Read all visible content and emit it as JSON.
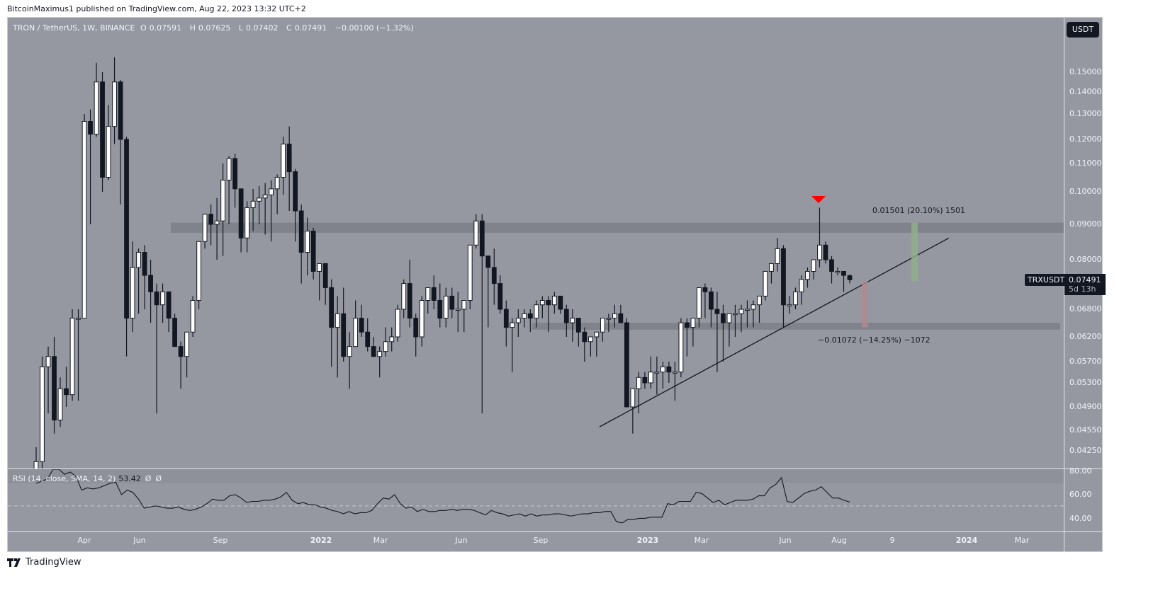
{
  "publisher": "BitcoinMaximus1 published on TradingView.com, Aug 22, 2023 13:32 UTC+2",
  "legend": {
    "symbol": "TRON / TetherUS, 1W, BINANCE",
    "open_label": "O",
    "open": "0.07591",
    "high_label": "H",
    "high": "0.07625",
    "low_label": "L",
    "low": "0.07402",
    "close_label": "C",
    "close": "0.07491",
    "change": "−0.00100 (−1.32%)"
  },
  "currency_button": "USDT",
  "price_axis": [
    "0.15000",
    "0.14000",
    "0.13000",
    "0.12000",
    "0.11000",
    "0.10000",
    "0.09000",
    "0.08000",
    "0.06800",
    "0.06200",
    "0.05700",
    "0.05300",
    "0.04900",
    "0.04550",
    "0.04250"
  ],
  "current_price": {
    "symbol": "TRXUSDT",
    "price": "0.07491",
    "countdown": "5d 13h"
  },
  "rsi": {
    "label": "RSI (14, close, SMA, 14, 2)",
    "value": "53.42",
    "na1": "Ø",
    "na2": "Ø",
    "axis": [
      "80.00",
      "60.00",
      "40.00"
    ]
  },
  "time_axis": [
    "Apr",
    "Jun",
    "Sep",
    "2022",
    "Mar",
    "Jun",
    "Sep",
    "2023",
    "Mar",
    "Jun",
    "Aug",
    "9",
    "2024",
    "Mar"
  ],
  "annotations": {
    "upside": "0.01501 (20.10%) 1501",
    "downside": "−0.01072 (−14.25%) −1072"
  },
  "footer": {
    "brand": "TradingView"
  },
  "colors": {
    "background": "#9598a1",
    "bull": "#ffffff",
    "bear": "#131722",
    "zone": "#80838c",
    "marker": "#ff0000",
    "target_up": "#8fb08a",
    "target_down": "#b08a90"
  },
  "chart_data": {
    "type": "candlestick",
    "title": "TRON / TetherUS, 1W, BINANCE",
    "ylabel": "USDT",
    "yscale": "log",
    "ylim": [
      0.04,
      0.165
    ],
    "x_ticks": [
      "Apr 2021",
      "Jun 2021",
      "Sep 2021",
      "2022",
      "Mar 2022",
      "Jun 2022",
      "Sep 2022",
      "2023",
      "Mar 2023",
      "Jun 2023",
      "Aug 2023",
      "Sep 2023",
      "2024",
      "Mar 2024"
    ],
    "resistance_zone": [
      0.0875,
      0.0905
    ],
    "support_zone": [
      0.0635,
      0.065
    ],
    "ascending_trendline": {
      "from": {
        "date": "Nov 2022",
        "price": 0.046
      },
      "to": {
        "date": "Nov 2023",
        "price": 0.086
      }
    },
    "last_candle": {
      "open": 0.07591,
      "high": 0.07625,
      "low": 0.07402,
      "close": 0.07491,
      "change": -0.001,
      "change_pct": -1.32
    },
    "measure_up": {
      "delta": 0.01501,
      "pct": 20.1,
      "ticks": 1501
    },
    "measure_down": {
      "delta": -0.01072,
      "pct": -14.25,
      "ticks": -1072
    },
    "rsi": {
      "period": 14,
      "last": 53.42,
      "levels": [
        70,
        50,
        30
      ],
      "axis": [
        40,
        60,
        80
      ]
    },
    "candles_ohlc": [
      [
        0.03,
        0.043,
        0.029,
        0.041
      ],
      [
        0.041,
        0.058,
        0.04,
        0.056
      ],
      [
        0.056,
        0.06,
        0.048,
        0.058
      ],
      [
        0.058,
        0.062,
        0.045,
        0.047
      ],
      [
        0.047,
        0.054,
        0.046,
        0.052
      ],
      [
        0.052,
        0.056,
        0.049,
        0.051
      ],
      [
        0.051,
        0.068,
        0.05,
        0.066
      ],
      [
        0.066,
        0.068,
        0.05,
        0.066
      ],
      [
        0.066,
        0.13,
        0.066,
        0.127
      ],
      [
        0.127,
        0.132,
        0.09,
        0.122
      ],
      [
        0.122,
        0.155,
        0.121,
        0.145
      ],
      [
        0.145,
        0.15,
        0.1,
        0.105
      ],
      [
        0.105,
        0.134,
        0.104,
        0.125
      ],
      [
        0.125,
        0.158,
        0.118,
        0.145
      ],
      [
        0.145,
        0.146,
        0.096,
        0.12
      ],
      [
        0.12,
        0.121,
        0.058,
        0.066
      ],
      [
        0.066,
        0.085,
        0.063,
        0.078
      ],
      [
        0.078,
        0.083,
        0.067,
        0.082
      ],
      [
        0.082,
        0.084,
        0.068,
        0.076
      ],
      [
        0.076,
        0.08,
        0.065,
        0.072
      ],
      [
        0.072,
        0.074,
        0.048,
        0.069
      ],
      [
        0.069,
        0.074,
        0.065,
        0.072
      ],
      [
        0.072,
        0.072,
        0.063,
        0.066
      ],
      [
        0.066,
        0.067,
        0.06,
        0.06
      ],
      [
        0.06,
        0.061,
        0.052,
        0.058
      ],
      [
        0.058,
        0.062,
        0.054,
        0.063
      ],
      [
        0.063,
        0.071,
        0.062,
        0.07
      ],
      [
        0.07,
        0.078,
        0.068,
        0.085
      ],
      [
        0.085,
        0.092,
        0.083,
        0.093
      ],
      [
        0.093,
        0.096,
        0.084,
        0.09
      ],
      [
        0.09,
        0.098,
        0.08,
        0.091
      ],
      [
        0.091,
        0.11,
        0.081,
        0.104
      ],
      [
        0.104,
        0.113,
        0.09,
        0.112
      ],
      [
        0.112,
        0.114,
        0.095,
        0.101
      ],
      [
        0.101,
        0.101,
        0.082,
        0.086
      ],
      [
        0.086,
        0.097,
        0.082,
        0.095
      ],
      [
        0.095,
        0.101,
        0.088,
        0.097
      ],
      [
        0.097,
        0.102,
        0.09,
        0.098
      ],
      [
        0.098,
        0.103,
        0.087,
        0.099
      ],
      [
        0.099,
        0.104,
        0.085,
        0.101
      ],
      [
        0.101,
        0.106,
        0.093,
        0.105
      ],
      [
        0.105,
        0.121,
        0.099,
        0.118
      ],
      [
        0.118,
        0.125,
        0.094,
        0.107
      ],
      [
        0.107,
        0.108,
        0.085,
        0.094
      ],
      [
        0.094,
        0.096,
        0.074,
        0.082
      ],
      [
        0.082,
        0.092,
        0.076,
        0.088
      ],
      [
        0.088,
        0.089,
        0.075,
        0.077
      ],
      [
        0.077,
        0.078,
        0.07,
        0.079
      ],
      [
        0.079,
        0.079,
        0.069,
        0.073
      ],
      [
        0.073,
        0.075,
        0.056,
        0.064
      ],
      [
        0.064,
        0.071,
        0.054,
        0.067
      ],
      [
        0.067,
        0.073,
        0.057,
        0.058
      ],
      [
        0.058,
        0.063,
        0.052,
        0.06
      ],
      [
        0.06,
        0.07,
        0.061,
        0.066
      ],
      [
        0.066,
        0.069,
        0.062,
        0.063
      ],
      [
        0.063,
        0.066,
        0.059,
        0.06
      ],
      [
        0.06,
        0.062,
        0.058,
        0.058
      ],
      [
        0.058,
        0.06,
        0.054,
        0.059
      ],
      [
        0.059,
        0.064,
        0.058,
        0.061
      ],
      [
        0.061,
        0.064,
        0.059,
        0.062
      ],
      [
        0.062,
        0.069,
        0.061,
        0.068
      ],
      [
        0.068,
        0.075,
        0.066,
        0.074
      ],
      [
        0.074,
        0.08,
        0.064,
        0.066
      ],
      [
        0.066,
        0.067,
        0.058,
        0.062
      ],
      [
        0.062,
        0.071,
        0.06,
        0.07
      ],
      [
        0.07,
        0.073,
        0.067,
        0.073
      ],
      [
        0.073,
        0.076,
        0.068,
        0.07
      ],
      [
        0.07,
        0.074,
        0.064,
        0.066
      ],
      [
        0.066,
        0.073,
        0.064,
        0.071
      ],
      [
        0.071,
        0.073,
        0.066,
        0.068
      ],
      [
        0.068,
        0.072,
        0.063,
        0.068
      ],
      [
        0.068,
        0.07,
        0.063,
        0.07
      ],
      [
        0.07,
        0.079,
        0.068,
        0.084
      ],
      [
        0.084,
        0.093,
        0.083,
        0.091
      ],
      [
        0.091,
        0.093,
        0.048,
        0.081
      ],
      [
        0.081,
        0.081,
        0.064,
        0.078
      ],
      [
        0.078,
        0.083,
        0.069,
        0.074
      ],
      [
        0.074,
        0.076,
        0.067,
        0.068
      ],
      [
        0.068,
        0.07,
        0.06,
        0.064
      ],
      [
        0.064,
        0.066,
        0.055,
        0.065
      ],
      [
        0.065,
        0.068,
        0.062,
        0.066
      ],
      [
        0.066,
        0.068,
        0.064,
        0.067
      ],
      [
        0.067,
        0.068,
        0.063,
        0.066
      ],
      [
        0.066,
        0.07,
        0.064,
        0.069
      ],
      [
        0.069,
        0.071,
        0.066,
        0.07
      ],
      [
        0.07,
        0.071,
        0.063,
        0.069
      ],
      [
        0.069,
        0.072,
        0.067,
        0.071
      ],
      [
        0.071,
        0.071,
        0.067,
        0.068
      ],
      [
        0.068,
        0.069,
        0.062,
        0.065
      ],
      [
        0.065,
        0.068,
        0.061,
        0.066
      ],
      [
        0.066,
        0.066,
        0.06,
        0.063
      ],
      [
        0.063,
        0.064,
        0.057,
        0.061
      ],
      [
        0.061,
        0.062,
        0.058,
        0.062
      ],
      [
        0.062,
        0.063,
        0.058,
        0.063
      ],
      [
        0.063,
        0.066,
        0.061,
        0.066
      ],
      [
        0.066,
        0.067,
        0.063,
        0.066
      ],
      [
        0.066,
        0.069,
        0.064,
        0.067
      ],
      [
        0.067,
        0.069,
        0.065,
        0.065
      ],
      [
        0.065,
        0.066,
        0.057,
        0.049
      ],
      [
        0.049,
        0.052,
        0.045,
        0.052
      ],
      [
        0.052,
        0.055,
        0.048,
        0.054
      ],
      [
        0.054,
        0.055,
        0.052,
        0.053
      ],
      [
        0.053,
        0.058,
        0.052,
        0.055
      ],
      [
        0.055,
        0.058,
        0.051,
        0.055
      ],
      [
        0.055,
        0.057,
        0.052,
        0.056
      ],
      [
        0.056,
        0.057,
        0.053,
        0.055
      ],
      [
        0.055,
        0.057,
        0.05,
        0.055
      ],
      [
        0.055,
        0.066,
        0.054,
        0.065
      ],
      [
        0.065,
        0.066,
        0.058,
        0.064
      ],
      [
        0.064,
        0.066,
        0.06,
        0.066
      ],
      [
        0.066,
        0.07,
        0.064,
        0.073
      ],
      [
        0.073,
        0.074,
        0.066,
        0.072
      ],
      [
        0.072,
        0.073,
        0.064,
        0.068
      ],
      [
        0.068,
        0.072,
        0.055,
        0.067
      ],
      [
        0.067,
        0.069,
        0.057,
        0.065
      ],
      [
        0.065,
        0.066,
        0.06,
        0.067
      ],
      [
        0.067,
        0.069,
        0.062,
        0.067
      ],
      [
        0.067,
        0.069,
        0.063,
        0.068
      ],
      [
        0.068,
        0.07,
        0.064,
        0.068
      ],
      [
        0.068,
        0.07,
        0.064,
        0.069
      ],
      [
        0.069,
        0.071,
        0.065,
        0.071
      ],
      [
        0.071,
        0.077,
        0.07,
        0.077
      ],
      [
        0.077,
        0.079,
        0.074,
        0.079
      ],
      [
        0.079,
        0.086,
        0.077,
        0.083
      ],
      [
        0.083,
        0.084,
        0.064,
        0.069
      ],
      [
        0.069,
        0.071,
        0.067,
        0.069
      ],
      [
        0.069,
        0.073,
        0.068,
        0.072
      ],
      [
        0.072,
        0.076,
        0.069,
        0.075
      ],
      [
        0.075,
        0.078,
        0.073,
        0.077
      ],
      [
        0.077,
        0.08,
        0.075,
        0.08
      ],
      [
        0.08,
        0.095,
        0.078,
        0.084
      ],
      [
        0.084,
        0.085,
        0.079,
        0.08
      ],
      [
        0.08,
        0.081,
        0.074,
        0.077
      ],
      [
        0.077,
        0.078,
        0.076,
        0.077
      ],
      [
        0.077,
        0.077,
        0.072,
        0.076
      ],
      [
        0.07591,
        0.07625,
        0.07402,
        0.07491
      ]
    ],
    "rsi_values": [
      70,
      72,
      74,
      85,
      84,
      78,
      80,
      76,
      64,
      66,
      65,
      66,
      68,
      70,
      71,
      60,
      64,
      62,
      56,
      48,
      49,
      50,
      49,
      48,
      48,
      49,
      47,
      46,
      47,
      49,
      52,
      56,
      55,
      55,
      59,
      60,
      57,
      53,
      54,
      54,
      55,
      55,
      56,
      58,
      62,
      55,
      52,
      53,
      51,
      51,
      49,
      48,
      46,
      45,
      43,
      45,
      43,
      44,
      44,
      46,
      52,
      57,
      56,
      60,
      52,
      48,
      49,
      45,
      47,
      45,
      45,
      46,
      46,
      47,
      46,
      47,
      47,
      46,
      44,
      42,
      46,
      44,
      43,
      41,
      42,
      43,
      41,
      43,
      41,
      42,
      42,
      43,
      43,
      42,
      41,
      42,
      43,
      43,
      44,
      44,
      45,
      45,
      36,
      35,
      38,
      38,
      39,
      39,
      40,
      40,
      40,
      52,
      51,
      54,
      54,
      54,
      62,
      61,
      57,
      53,
      55,
      51,
      53,
      55,
      55,
      55,
      56,
      59,
      59,
      66,
      69,
      75,
      54,
      53,
      57,
      61,
      63,
      64,
      67,
      62,
      57,
      57,
      55,
      53.42
    ]
  }
}
